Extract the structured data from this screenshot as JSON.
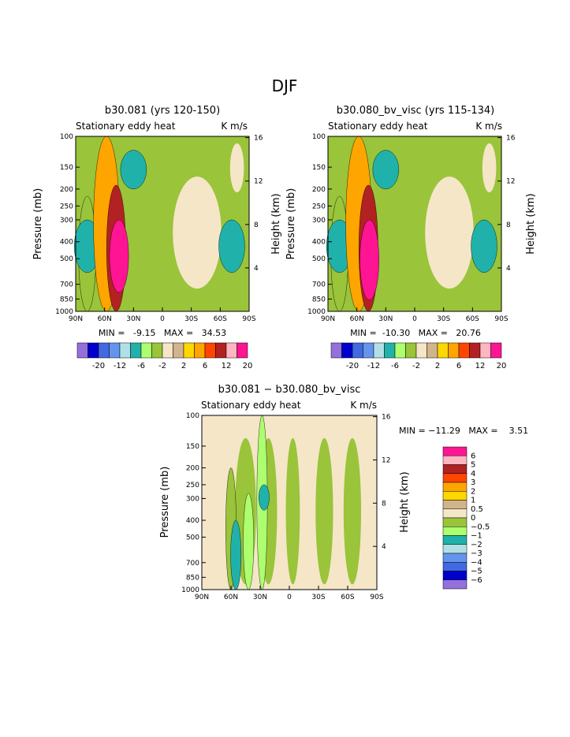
{
  "page_title": "DJF",
  "chart_data": [
    {
      "type": "heatmap",
      "title": "b30.081 (yrs 120-150)",
      "subtitle_left": "Stationary eddy heat",
      "subtitle_right": "K m/s",
      "ylabel": "Pressure (mb)",
      "ylabel_right": "Height (km)",
      "xticks": [
        "90N",
        "60N",
        "30N",
        "0",
        "30S",
        "60S",
        "90S"
      ],
      "yticks": [
        "100",
        "150",
        "200",
        "250",
        "300",
        "400",
        "500",
        "700",
        "850",
        "1000"
      ],
      "yticks_right": [
        "16",
        "12",
        "8",
        "4"
      ],
      "stats": "MIN =   -9.15   MAX =   34.53",
      "bands": [
        {
          "lat": 78,
          "pmin": 220,
          "pmax": 1000,
          "value": -2
        },
        {
          "lat": 78,
          "pmin": 300,
          "pmax": 600,
          "value": -6
        },
        {
          "lat": 58,
          "pmin": 100,
          "pmax": 1000,
          "value": 6
        },
        {
          "lat": 48,
          "pmin": 190,
          "pmax": 1000,
          "value": 12
        },
        {
          "lat": 45,
          "pmin": 300,
          "pmax": 780,
          "value": 20
        },
        {
          "lat": 30,
          "pmin": 120,
          "pmax": 200,
          "value": -6
        },
        {
          "lat": -72,
          "pmin": 300,
          "pmax": 600,
          "value": -6
        }
      ],
      "colorbar_labels": [
        "-20",
        "-12",
        "-6",
        "-2",
        "2",
        "6",
        "12",
        "20"
      ]
    },
    {
      "type": "heatmap",
      "title": "b30.080_bv_visc (yrs 115-134)",
      "subtitle_left": "Stationary eddy heat",
      "subtitle_right": "K m/s",
      "ylabel": "Pressure (mb)",
      "ylabel_right": "Height (km)",
      "xticks": [
        "90N",
        "60N",
        "30N",
        "0",
        "30S",
        "60S",
        "90S"
      ],
      "yticks": [
        "100",
        "150",
        "200",
        "250",
        "300",
        "400",
        "500",
        "700",
        "850",
        "1000"
      ],
      "yticks_right": [
        "16",
        "12",
        "8",
        "4"
      ],
      "stats": "MIN =  -10.30   MAX =   20.76",
      "bands": [
        {
          "lat": 78,
          "pmin": 220,
          "pmax": 1000,
          "value": -2
        },
        {
          "lat": 78,
          "pmin": 300,
          "pmax": 600,
          "value": -6
        },
        {
          "lat": 58,
          "pmin": 100,
          "pmax": 1000,
          "value": 6
        },
        {
          "lat": 48,
          "pmin": 190,
          "pmax": 1000,
          "value": 12
        },
        {
          "lat": 47,
          "pmin": 300,
          "pmax": 860,
          "value": 20
        },
        {
          "lat": 30,
          "pmin": 120,
          "pmax": 200,
          "value": -6
        },
        {
          "lat": -72,
          "pmin": 300,
          "pmax": 600,
          "value": -6
        }
      ],
      "colorbar_labels": [
        "-20",
        "-12",
        "-6",
        "-2",
        "2",
        "6",
        "12",
        "20"
      ]
    },
    {
      "type": "heatmap",
      "title": "b30.081 − b30.080_bv_visc",
      "subtitle_left": "Stationary eddy heat",
      "subtitle_right": "K m/s",
      "ylabel": "Pressure (mb)",
      "ylabel_right": "Height (km)",
      "xticks": [
        "90N",
        "60N",
        "30N",
        "0",
        "30S",
        "60S",
        "90S"
      ],
      "yticks": [
        "100",
        "150",
        "200",
        "250",
        "300",
        "400",
        "500",
        "700",
        "850",
        "1000"
      ],
      "yticks_right": [
        "16",
        "12",
        "8",
        "4"
      ],
      "stats": "MIN = −11.29   MAX =    3.51",
      "bands": [
        {
          "lat": 60,
          "pmin": 200,
          "pmax": 1000,
          "value": -0.5
        },
        {
          "lat": 55,
          "pmin": 400,
          "pmax": 1000,
          "value": -2
        },
        {
          "lat": 42,
          "pmin": 280,
          "pmax": 1000,
          "value": -1
        },
        {
          "lat": 28,
          "pmin": 100,
          "pmax": 1000,
          "value": -1
        },
        {
          "lat": 26,
          "pmin": 250,
          "pmax": 350,
          "value": -2
        }
      ],
      "colorbar_labels": [
        "6",
        "5",
        "4",
        "3",
        "2",
        "1",
        "0.5",
        "0",
        "−0.5",
        "−1",
        "−2",
        "−3",
        "−4",
        "−5",
        "−6"
      ]
    }
  ],
  "colors": {
    "c1": "#9370DB",
    "c2": "#0000CD",
    "c3": "#4169E1",
    "c4": "#6495ED",
    "c5": "#B0E0E6",
    "c6": "#20B2AA",
    "c7": "#ADFF6F",
    "c8": "#9AC43A",
    "c9": "#F5E6C8",
    "c10": "#D2B48C",
    "c11": "#FFD700",
    "c12": "#FFA500",
    "c13": "#FF4500",
    "c14": "#B22222",
    "c15": "#FFB6C1",
    "c16": "#FF1493"
  }
}
